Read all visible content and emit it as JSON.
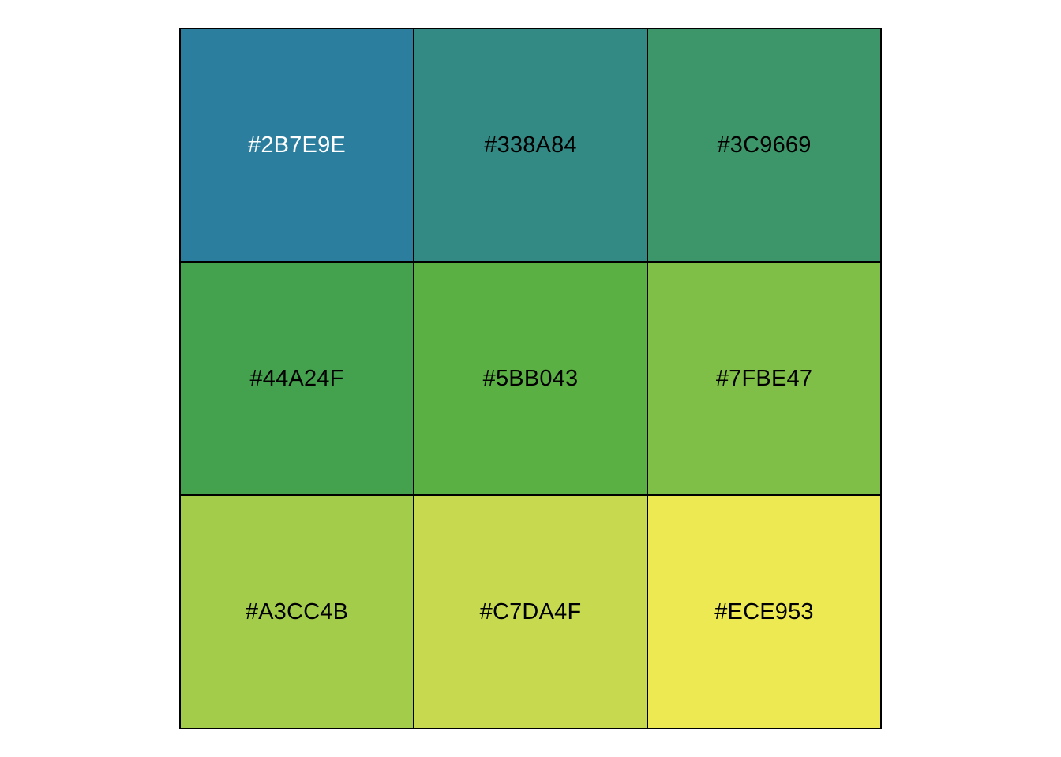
{
  "chart_data": {
    "type": "table",
    "rows": 3,
    "cols": 3,
    "cells": [
      {
        "label": "#2B7E9E",
        "color": "#2B7E9E",
        "text_color": "#FFFFFF"
      },
      {
        "label": "#338A84",
        "color": "#338A84",
        "text_color": "#000000"
      },
      {
        "label": "#3C9669",
        "color": "#3C9669",
        "text_color": "#000000"
      },
      {
        "label": "#44A24F",
        "color": "#44A24F",
        "text_color": "#000000"
      },
      {
        "label": "#5BB043",
        "color": "#5BB043",
        "text_color": "#000000"
      },
      {
        "label": "#7FBE47",
        "color": "#7FBE47",
        "text_color": "#000000"
      },
      {
        "label": "#A3CC4B",
        "color": "#A3CC4B",
        "text_color": "#000000"
      },
      {
        "label": "#C7DA4F",
        "color": "#C7DA4F",
        "text_color": "#000000"
      },
      {
        "label": "#ECE953",
        "color": "#ECE953",
        "text_color": "#000000"
      }
    ]
  }
}
